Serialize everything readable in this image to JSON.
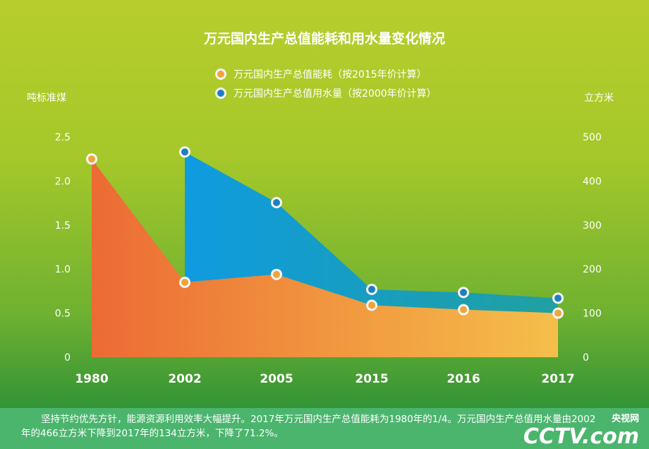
{
  "chart_data": {
    "type": "area",
    "title": "万元国内生产总值能耗和用水量变化情况",
    "categories": [
      "1980",
      "2002",
      "2005",
      "2015",
      "2016",
      "2017"
    ],
    "ylabel_left": "吨标准煤",
    "ylabel_right": "立方米",
    "ylim_left": [
      0,
      2.5
    ],
    "yticks_left": [
      "0",
      "0.5",
      "1.0",
      "1.5",
      "2.0",
      "2.5"
    ],
    "ylim_right": [
      0,
      500
    ],
    "yticks_right": [
      "0",
      "100",
      "200",
      "300",
      "400",
      "500"
    ],
    "series": [
      {
        "name": "万元国内生产总值能耗（按2015年价计算）",
        "axis": "left",
        "color": "#f0a53a",
        "values": [
          2.25,
          0.85,
          0.94,
          0.59,
          0.54,
          0.5
        ]
      },
      {
        "name": "万元国内生产总值用水量（按2000年价计算）",
        "axis": "right",
        "color": "#1e8fc9",
        "values": [
          null,
          466,
          351,
          154,
          147,
          134
        ]
      }
    ]
  },
  "footer": {
    "text": "坚持节约优先方针，能源资源利用效率大幅提升。2017年万元国内生产总值能耗为1980年的1/4。万元国内生产总值用水量由2002年的466立方米下降到2017年的134立方米，下降了71.2%。"
  },
  "logo": {
    "main": "CCTV.com",
    "sub": "央视网"
  }
}
